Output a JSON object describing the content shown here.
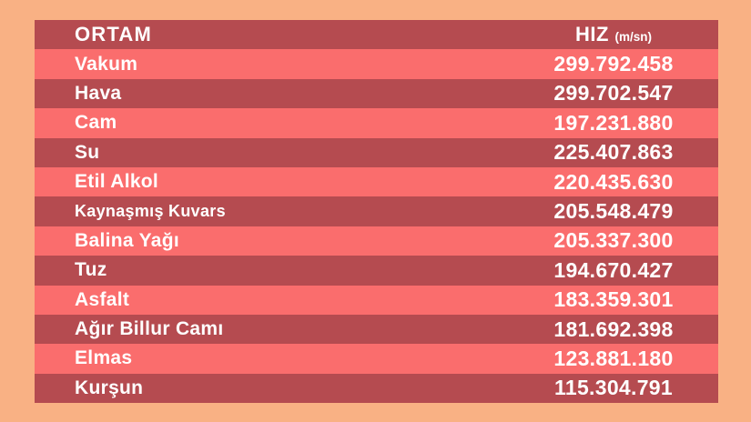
{
  "table": {
    "header": {
      "medium": "ORTAM",
      "speed": "HIZ",
      "speed_unit": "(m/sn)"
    },
    "rows": [
      {
        "medium": "Vakum",
        "speed": "299.792.458"
      },
      {
        "medium": "Hava",
        "speed": "299.702.547"
      },
      {
        "medium": "Cam",
        "speed": "197.231.880"
      },
      {
        "medium": "Su",
        "speed": "225.407.863"
      },
      {
        "medium": "Etil Alkol",
        "speed": "220.435.630"
      },
      {
        "medium": "Kaynaşmış Kuvars",
        "speed": "205.548.479"
      },
      {
        "medium": "Balina Yağı",
        "speed": "205.337.300"
      },
      {
        "medium": "Tuz",
        "speed": "194.670.427"
      },
      {
        "medium": "Asfalt",
        "speed": "183.359.301"
      },
      {
        "medium": "Ağır Billur Camı",
        "speed": "181.692.398"
      },
      {
        "medium": "Elmas",
        "speed": "123.881.180"
      },
      {
        "medium": "Kurşun",
        "speed": "115.304.791"
      }
    ],
    "colors": {
      "background": "#f9b184",
      "row_dark": "#b54b50",
      "row_light": "#fa6d6d",
      "text": "#ffffff"
    }
  },
  "chart_data": {
    "type": "table",
    "title": "",
    "columns": [
      "ORTAM",
      "HIZ (m/sn)"
    ],
    "categories": [
      "Vakum",
      "Hava",
      "Cam",
      "Su",
      "Etil Alkol",
      "Kaynaşmış Kuvars",
      "Balina Yağı",
      "Tuz",
      "Asfalt",
      "Ağır Billur Camı",
      "Elmas",
      "Kurşun"
    ],
    "values": [
      299792458,
      299702547,
      197231880,
      225407863,
      220435630,
      205548479,
      205337300,
      194670427,
      183359301,
      181692398,
      123881180,
      115304791
    ],
    "value_labels": [
      "299.792.458",
      "299.702.547",
      "197.231.880",
      "225.407.863",
      "220.435.630",
      "205.548.479",
      "205.337.300",
      "194.670.427",
      "183.359.301",
      "181.692.398",
      "123.881.180",
      "115.304.791"
    ],
    "xlabel": "ORTAM",
    "ylabel": "HIZ (m/sn)"
  }
}
